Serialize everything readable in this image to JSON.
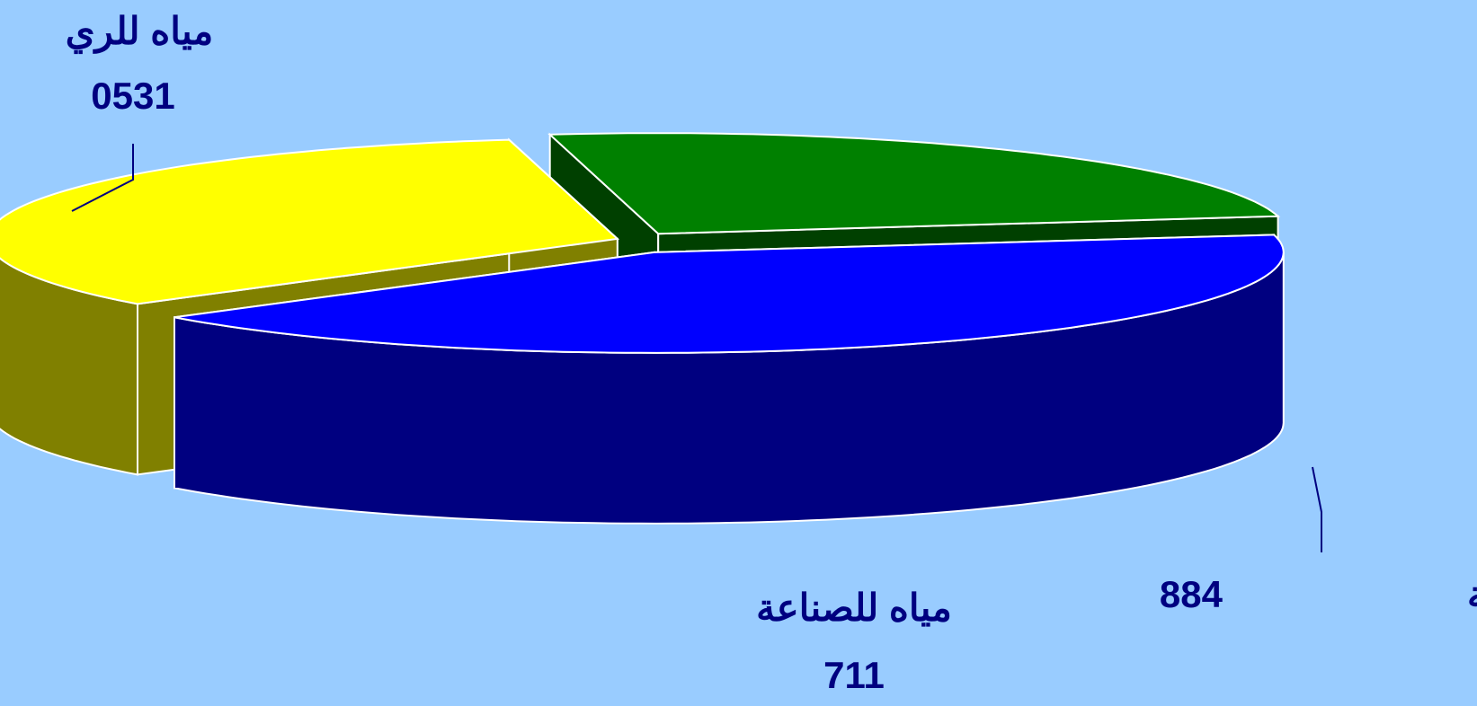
{
  "chart_data": {
    "type": "pie3d",
    "categories": [
      "مياه الشفة",
      "مياه للصناعة",
      "مياه للري"
    ],
    "values": [
      884,
      711,
      531
    ],
    "value_labels": [
      "884",
      "711",
      "0531"
    ],
    "colors": [
      "#0000ff",
      "#ffff00",
      "#008000"
    ],
    "side_colors": [
      "#000080",
      "#808000",
      "#004000"
    ]
  }
}
